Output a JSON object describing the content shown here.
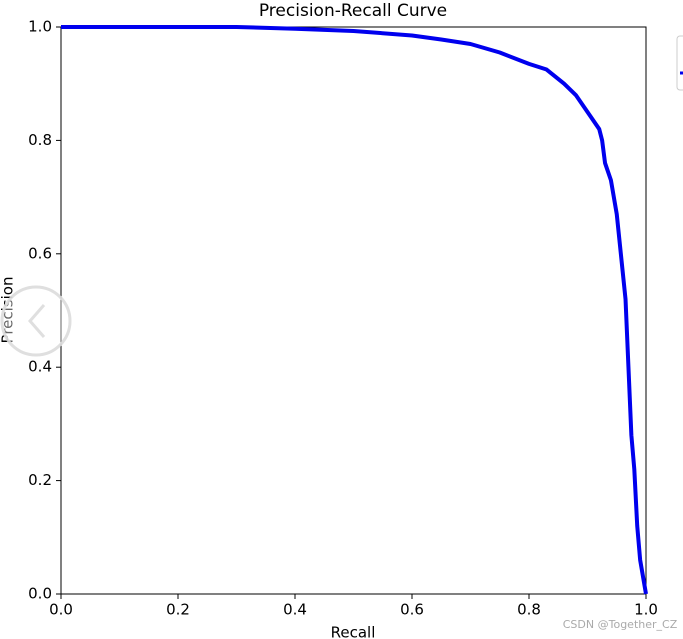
{
  "chart_data": {
    "type": "line",
    "title": "Precision-Recall Curve",
    "x_label": "Recall",
    "y_label": "Precision",
    "x": [
      0,
      0.3,
      0.4,
      0.5,
      0.6,
      0.65,
      0.7,
      0.75,
      0.8,
      0.83,
      0.86,
      0.88,
      0.9,
      0.92,
      0.925,
      0.93,
      0.94,
      0.95,
      0.96,
      0.965,
      0.97,
      0.975,
      0.98,
      0.985,
      0.99,
      1.0
    ],
    "series": [
      {
        "color": "#0000ee",
        "values": [
          1.0,
          1.0,
          0.997,
          0.993,
          0.985,
          0.978,
          0.97,
          0.955,
          0.935,
          0.925,
          0.9,
          0.88,
          0.85,
          0.82,
          0.8,
          0.76,
          0.73,
          0.67,
          0.57,
          0.52,
          0.4,
          0.28,
          0.22,
          0.12,
          0.06,
          0.0
        ]
      }
    ],
    "xlim": [
      0,
      1
    ],
    "ylim": [
      0,
      1
    ],
    "xticks": [
      {
        "value": 0,
        "label": "0.0"
      },
      0.2,
      0.4,
      0.6,
      0.8,
      {
        "value": 1,
        "label": "1.0"
      }
    ],
    "yticks": [
      {
        "value": 0,
        "label": "0.0"
      },
      0.2,
      0.4,
      0.6,
      0.8,
      {
        "value": 1,
        "label": "1.0"
      }
    ],
    "grid": false,
    "watermark": "CSDN @Together_CZ"
  }
}
